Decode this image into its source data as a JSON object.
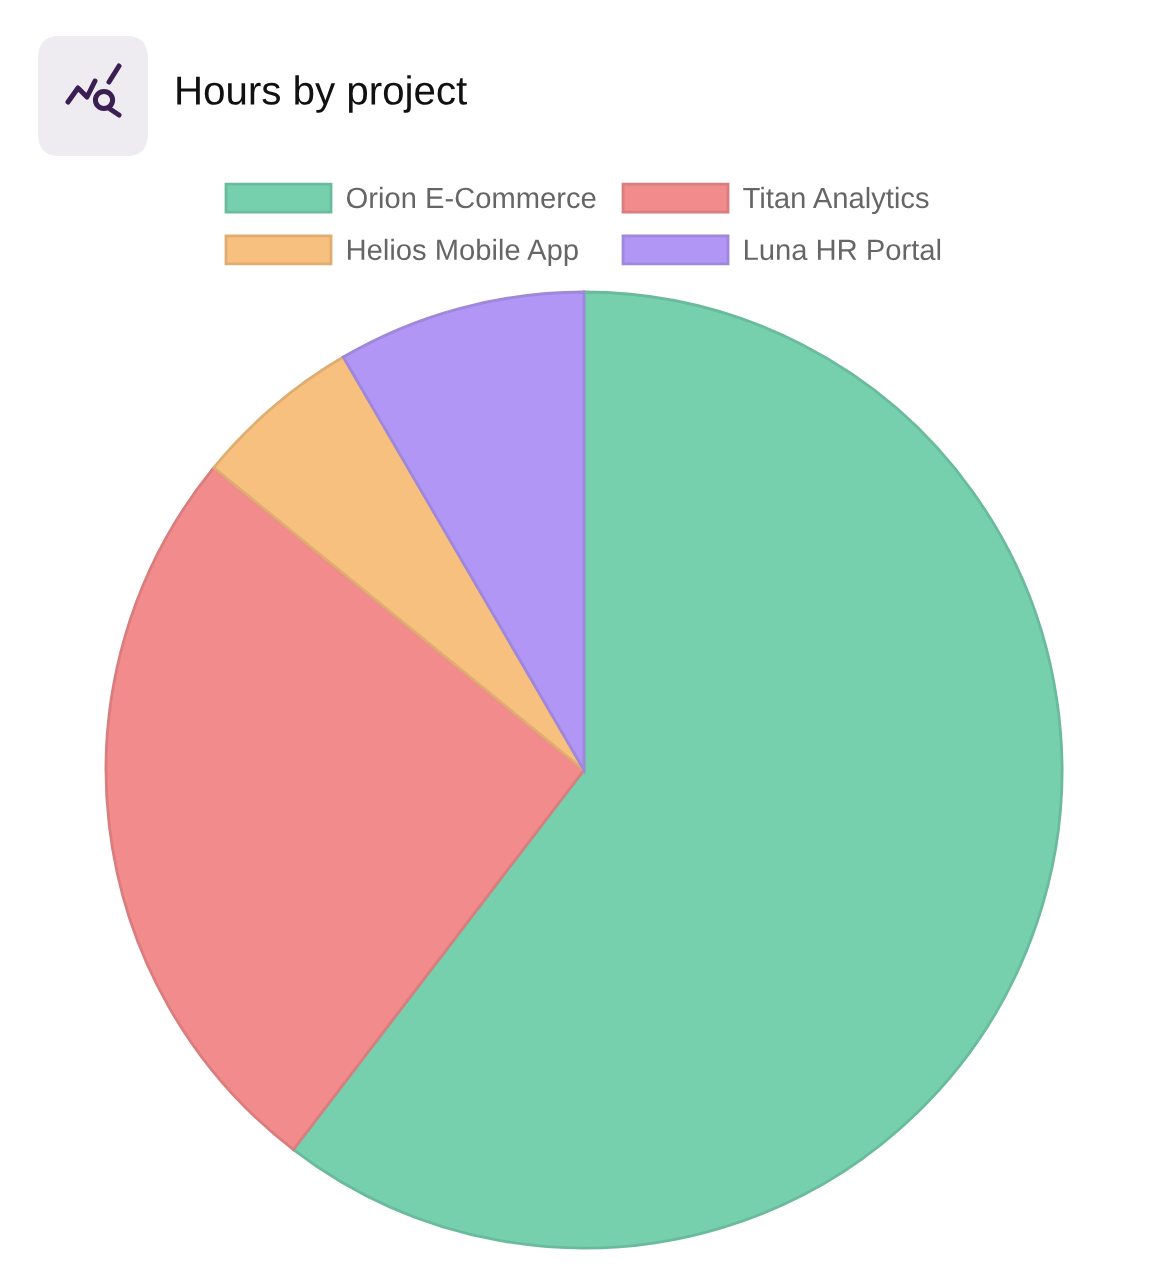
{
  "chart_data": {
    "type": "pie",
    "title": "Hours by project",
    "categories": [
      "Orion E-Commerce",
      "Titan Analytics",
      "Helios Mobile App",
      "Luna HR Portal"
    ],
    "values": [
      60.4,
      25.5,
      5.7,
      8.4
    ],
    "colors": [
      "#76d0ae",
      "#f28b8c",
      "#f8c07e",
      "#b196f5"
    ],
    "legend": "top"
  }
}
